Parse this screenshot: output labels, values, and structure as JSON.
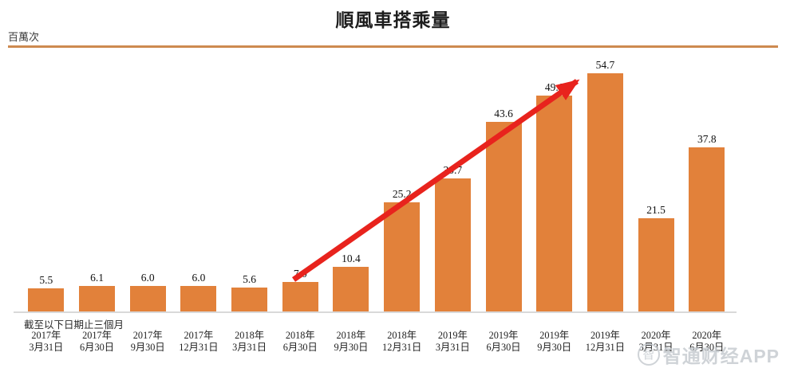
{
  "page": {
    "title": "順風車搭乘量",
    "unit_label": "百萬次",
    "footnote": "截至以下日期止三個月",
    "watermark_text": "智通财经APP",
    "watermark_logo_glyph": "智"
  },
  "colors": {
    "bar": "#e2813a",
    "top_rule": "#cd8a50",
    "arrow": "#e8231d",
    "axis_line": "#d9d9d9",
    "watermark": "#c7ccd1"
  },
  "chart_data": {
    "type": "bar",
    "title": "順風車搭乘量",
    "ylabel": "百萬次",
    "xlabel": "截至以下日期止三個月",
    "categories": [
      "2017年3月31日",
      "2017年6月30日",
      "2017年9月30日",
      "2017年12月31日",
      "2018年3月31日",
      "2018年6月30日",
      "2018年9月30日",
      "2018年12月31日",
      "2019年3月31日",
      "2019年6月30日",
      "2019年9月30日",
      "2019年12月31日",
      "2020年3月31日",
      "2020年6月30日"
    ],
    "category_lines": [
      [
        "2017年",
        "3月31日"
      ],
      [
        "2017年",
        "6月30日"
      ],
      [
        "2017年",
        "9月30日"
      ],
      [
        "2017年",
        "12月31日"
      ],
      [
        "2018年",
        "3月31日"
      ],
      [
        "2018年",
        "6月30日"
      ],
      [
        "2018年",
        "9月30日"
      ],
      [
        "2018年",
        "12月31日"
      ],
      [
        "2019年",
        "3月31日"
      ],
      [
        "2019年",
        "6月30日"
      ],
      [
        "2019年",
        "9月30日"
      ],
      [
        "2019年",
        "12月31日"
      ],
      [
        "2020年",
        "3月31日"
      ],
      [
        "2020年",
        "6月30日"
      ]
    ],
    "values": [
      5.5,
      6.1,
      6.0,
      6.0,
      5.6,
      7.0,
      10.4,
      25.2,
      30.7,
      43.6,
      49.6,
      54.7,
      21.5,
      37.8
    ],
    "ylim": [
      0,
      57
    ],
    "grid": false,
    "legend": false,
    "annotation": {
      "type": "trend-arrow",
      "from_value_label": "7.0",
      "to_value_label": "54.7"
    }
  }
}
